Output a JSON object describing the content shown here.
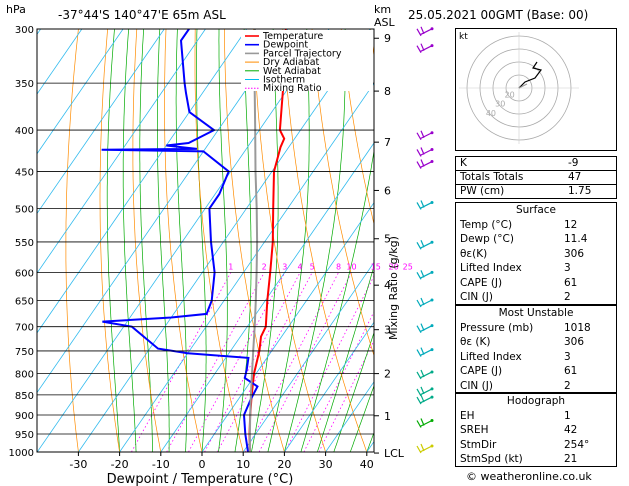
{
  "header": {
    "hpa_label": "hPa",
    "location": "-37°44'S  140°47'E  65m  ASL",
    "km_label": "km",
    "asl_label": "ASL",
    "datetime": "25.05.2021  00GMT  (Base: 00)"
  },
  "legend": [
    {
      "label": "Temperature",
      "color": "#ff0000"
    },
    {
      "label": "Dewpoint",
      "color": "#0000ff"
    },
    {
      "label": "Parcel Trajectory",
      "color": "#999999"
    },
    {
      "label": "Dry Adiabat",
      "color": "#ff8c00"
    },
    {
      "label": "Wet Adiabat",
      "color": "#00aa00"
    },
    {
      "label": "Isotherm",
      "color": "#00bbee"
    },
    {
      "label": "Mixing Ratio",
      "color": "#ff00ff"
    }
  ],
  "chart_data": {
    "type": "line",
    "title": "",
    "xlabel": "Dewpoint / Temperature (°C)",
    "ylabel": "hPa",
    "xlim": [
      -35,
      40
    ],
    "ylim": [
      1000,
      300
    ],
    "y_scale": "log",
    "skew": true,
    "pressure_levels": [
      300,
      350,
      400,
      450,
      500,
      550,
      600,
      650,
      700,
      750,
      800,
      850,
      900,
      950,
      1000
    ],
    "x_ticks": [
      -30,
      -20,
      -10,
      0,
      10,
      20,
      30,
      40
    ],
    "km_ticks": [
      {
        "label": "9",
        "p": 308
      },
      {
        "label": "8",
        "p": 358
      },
      {
        "label": "7",
        "p": 414
      },
      {
        "label": "6",
        "p": 475
      },
      {
        "label": "5",
        "p": 545
      },
      {
        "label": "4",
        "p": 622
      },
      {
        "label": "3",
        "p": 706
      },
      {
        "label": "2",
        "p": 800
      },
      {
        "label": "1",
        "p": 902
      },
      {
        "label": "LCL",
        "p": 1003
      }
    ],
    "mixing_ratio_label": "Mixing Ratio (g/kg)",
    "mixing_ratio_values": [
      "1",
      "2",
      "3",
      "4",
      "5",
      "8",
      "10",
      "15",
      "20",
      "25"
    ],
    "series": [
      {
        "name": "Temperature",
        "color": "#ff0000",
        "points": [
          [
            1003,
            11.8
          ],
          [
            950,
            8.5
          ],
          [
            900,
            5.5
          ],
          [
            850,
            2.5
          ],
          [
            800,
            -0.5
          ],
          [
            750,
            -3.0
          ],
          [
            720,
            -5.0
          ],
          [
            700,
            -5.5
          ],
          [
            650,
            -9.5
          ],
          [
            600,
            -13.5
          ],
          [
            550,
            -18.0
          ],
          [
            500,
            -23.5
          ],
          [
            450,
            -29.5
          ],
          [
            420,
            -32.0
          ],
          [
            410,
            -32.5
          ],
          [
            400,
            -35.0
          ],
          [
            350,
            -42.0
          ],
          [
            300,
            -50.5
          ]
        ]
      },
      {
        "name": "Dewpoint",
        "color": "#0000ff",
        "points": [
          [
            1003,
            11.4
          ],
          [
            950,
            7.5
          ],
          [
            900,
            4.0
          ],
          [
            860,
            3.0
          ],
          [
            830,
            2.5
          ],
          [
            810,
            -2.0
          ],
          [
            790,
            -3.0
          ],
          [
            765,
            -4.5
          ],
          [
            755,
            -20.0
          ],
          [
            745,
            -28.0
          ],
          [
            700,
            -38.0
          ],
          [
            690,
            -46.0
          ],
          [
            682,
            -30.0
          ],
          [
            675,
            -22.0
          ],
          [
            650,
            -23.0
          ],
          [
            600,
            -27.0
          ],
          [
            550,
            -33.0
          ],
          [
            500,
            -39.0
          ],
          [
            480,
            -39.0
          ],
          [
            450,
            -40.5
          ],
          [
            425,
            -50.0
          ],
          [
            423,
            -75.0
          ],
          [
            422,
            -52.0
          ],
          [
            418,
            -60.0
          ],
          [
            415,
            -55.0
          ],
          [
            400,
            -51.0
          ],
          [
            380,
            -60.0
          ],
          [
            360,
            -64.0
          ],
          [
            350,
            -66.0
          ],
          [
            310,
            -74.0
          ],
          [
            300,
            -74.0
          ]
        ]
      },
      {
        "name": "Parcel Trajectory",
        "color": "#999999",
        "points": [
          [
            1003,
            11.8
          ],
          [
            950,
            8.6
          ],
          [
            900,
            5.5
          ],
          [
            850,
            2.3
          ],
          [
            800,
            -1.0
          ],
          [
            750,
            -4.5
          ],
          [
            700,
            -8.2
          ],
          [
            650,
            -12.3
          ],
          [
            600,
            -16.8
          ],
          [
            550,
            -21.8
          ],
          [
            500,
            -27.5
          ],
          [
            450,
            -34.0
          ],
          [
            400,
            -41.0
          ],
          [
            350,
            -49.0
          ],
          [
            300,
            -58.0
          ]
        ]
      }
    ]
  },
  "hodograph": {
    "unit_label": "kt",
    "ring_labels": [
      "40",
      "30",
      "20"
    ]
  },
  "indices": [
    {
      "label": "K",
      "value": "-9"
    },
    {
      "label": "Totals Totals",
      "value": "47"
    },
    {
      "label": "PW (cm)",
      "value": "1.75"
    }
  ],
  "surface": {
    "title": "Surface",
    "rows": [
      {
        "label": "Temp (°C)",
        "value": "12"
      },
      {
        "label": "Dewp (°C)",
        "value": "11.4"
      },
      {
        "label": "θε(K)",
        "value": "306"
      },
      {
        "label": "Lifted Index",
        "value": "3"
      },
      {
        "label": "CAPE (J)",
        "value": "61"
      },
      {
        "label": "CIN (J)",
        "value": "2"
      }
    ]
  },
  "most_unstable": {
    "title": "Most Unstable",
    "rows": [
      {
        "label": "Pressure (mb)",
        "value": "1018"
      },
      {
        "label": "θε (K)",
        "value": "306"
      },
      {
        "label": "Lifted Index",
        "value": "3"
      },
      {
        "label": "CAPE (J)",
        "value": "61"
      },
      {
        "label": "CIN (J)",
        "value": "2"
      }
    ]
  },
  "hodograph_box": {
    "title": "Hodograph",
    "rows": [
      {
        "label": "EH",
        "value": "1"
      },
      {
        "label": "SREH",
        "value": "42"
      },
      {
        "label": "StmDir",
        "value": "254°"
      },
      {
        "label": "StmSpd (kt)",
        "value": "21"
      }
    ]
  },
  "footer": {
    "credit": "© weatheronline.co.uk"
  }
}
